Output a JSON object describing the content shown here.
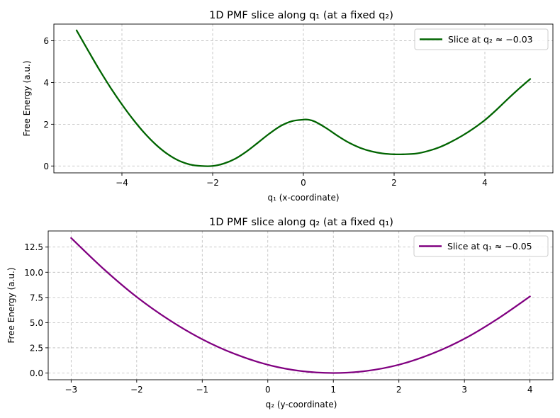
{
  "chart_data": [
    {
      "type": "line",
      "title": "1D PMF slice along q₁ (at a fixed q₂)",
      "xlabel": "q₁ (x-coordinate)",
      "ylabel": "Free Energy (a.u.)",
      "xlim": [
        -5.5,
        5.5
      ],
      "ylim": [
        -0.33,
        6.8
      ],
      "xticks": [
        -4,
        -2,
        0,
        2,
        4
      ],
      "xtick_labels": [
        "−4",
        "−2",
        "0",
        "2",
        "4"
      ],
      "yticks": [
        0,
        2,
        4,
        6
      ],
      "ytick_labels": [
        "0",
        "2",
        "4",
        "6"
      ],
      "grid": true,
      "legend_position": "top-right",
      "color": "#006400",
      "series": [
        {
          "name": "Slice at q₂ ≈ −0.03",
          "x": [
            -5.0,
            -4.75,
            -4.5,
            -4.25,
            -4.0,
            -3.75,
            -3.5,
            -3.25,
            -3.0,
            -2.75,
            -2.5,
            -2.25,
            -2.0,
            -1.75,
            -1.5,
            -1.25,
            -1.0,
            -0.75,
            -0.5,
            -0.25,
            0.0,
            0.1,
            0.25,
            0.5,
            0.75,
            1.0,
            1.25,
            1.5,
            1.75,
            2.0,
            2.2,
            2.5,
            2.75,
            3.0,
            3.25,
            3.5,
            3.75,
            4.0,
            4.25,
            4.5,
            4.75,
            5.0
          ],
          "y": [
            6.5,
            5.55,
            4.62,
            3.75,
            2.95,
            2.22,
            1.57,
            1.02,
            0.58,
            0.26,
            0.07,
            0.0,
            0.0,
            0.12,
            0.35,
            0.7,
            1.12,
            1.55,
            1.92,
            2.15,
            2.22,
            2.22,
            2.13,
            1.82,
            1.45,
            1.12,
            0.87,
            0.7,
            0.6,
            0.56,
            0.56,
            0.6,
            0.72,
            0.9,
            1.15,
            1.45,
            1.8,
            2.2,
            2.68,
            3.2,
            3.7,
            4.17
          ]
        }
      ]
    },
    {
      "type": "line",
      "title": "1D PMF slice along q₂ (at a fixed q₁)",
      "xlabel": "q₂ (y-coordinate)",
      "ylabel": "Free Energy (a.u.)",
      "xlim": [
        -3.35,
        4.35
      ],
      "ylim": [
        -0.67,
        14.1
      ],
      "xticks": [
        -3,
        -2,
        -1,
        0,
        1,
        2,
        3,
        4
      ],
      "xtick_labels": [
        "−3",
        "−2",
        "−1",
        "0",
        "1",
        "2",
        "3",
        "4"
      ],
      "yticks": [
        0,
        2.5,
        5,
        7.5,
        10,
        12.5
      ],
      "ytick_labels": [
        "0.0",
        "2.5",
        "5.0",
        "7.5",
        "10.0",
        "12.5"
      ],
      "grid": true,
      "legend_position": "top-right",
      "color": "#800080",
      "series": [
        {
          "name": "Slice at q₁ ≈ −0.05",
          "x": [
            -3.0,
            -2.5,
            -2.0,
            -1.5,
            -1.0,
            -0.5,
            0.0,
            0.5,
            1.0,
            1.5,
            2.0,
            2.5,
            3.0,
            3.5,
            4.0
          ],
          "y": [
            13.4,
            10.3,
            7.55,
            5.25,
            3.35,
            1.88,
            0.82,
            0.2,
            0.0,
            0.2,
            0.82,
            1.9,
            3.4,
            5.35,
            7.6
          ]
        }
      ]
    }
  ]
}
